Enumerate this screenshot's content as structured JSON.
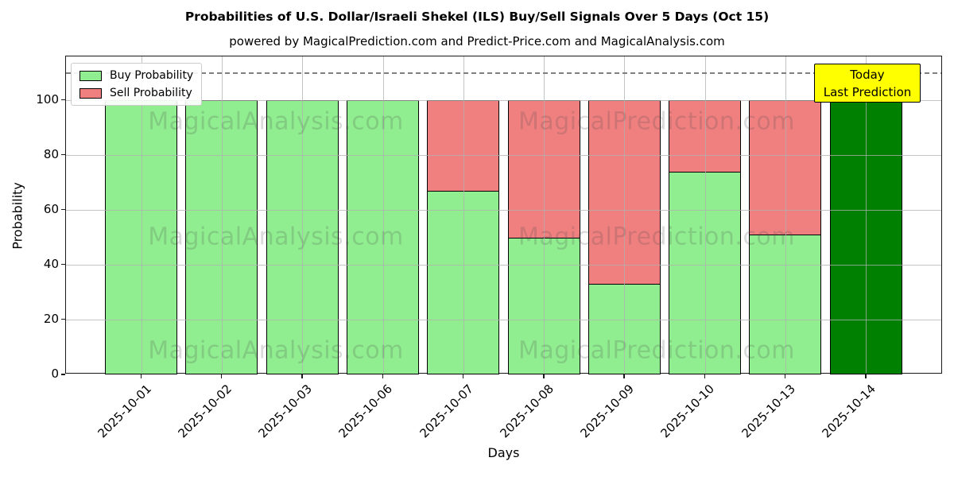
{
  "title": "Probabilities of U.S. Dollar/Israeli Shekel (ILS) Buy/Sell Signals Over 5 Days (Oct 15)",
  "subtitle": "powered by MagicalPrediction.com and Predict-Price.com and MagicalAnalysis.com",
  "legend": {
    "items": [
      {
        "label": "Buy Probability",
        "color": "#90EE90"
      },
      {
        "label": "Sell Probability",
        "color": "#F08080"
      }
    ]
  },
  "annotation": {
    "line1": "Today",
    "line2": "Last Prediction",
    "bg_color": "#FFFF00"
  },
  "watermarks": {
    "left_text": "MagicalAnalysis.com",
    "right_text": "MagicalPrediction.com"
  },
  "chart_data": {
    "type": "bar",
    "stacked": true,
    "title": "Probabilities of U.S. Dollar/Israeli Shekel (ILS) Buy/Sell Signals Over 5 Days (Oct 15)",
    "xlabel": "Days",
    "ylabel": "Probability",
    "categories": [
      "2025-10-01",
      "2025-10-02",
      "2025-10-03",
      "2025-10-06",
      "2025-10-07",
      "2025-10-08",
      "2025-10-09",
      "2025-10-10",
      "2025-10-13",
      "2025-10-14"
    ],
    "series": [
      {
        "name": "Buy Probability",
        "color": "#90EE90",
        "values": [
          100,
          100,
          100,
          100,
          67,
          50,
          33,
          74,
          51,
          100
        ]
      },
      {
        "name": "Sell Probability",
        "color": "#F08080",
        "values": [
          0,
          0,
          0,
          0,
          33,
          50,
          67,
          26,
          49,
          0
        ]
      }
    ],
    "today_bar": {
      "category": "2025-10-14",
      "index": 9,
      "color": "#008000"
    },
    "yticks": [
      0,
      20,
      40,
      60,
      80,
      100
    ],
    "ylim": [
      0,
      116
    ],
    "dashed_hline_y": 110,
    "grid": true,
    "grid_color": "#b0b0b0",
    "bar_edge_color": "#000000",
    "legend_position": "upper left",
    "xtick_rotation": 45
  }
}
